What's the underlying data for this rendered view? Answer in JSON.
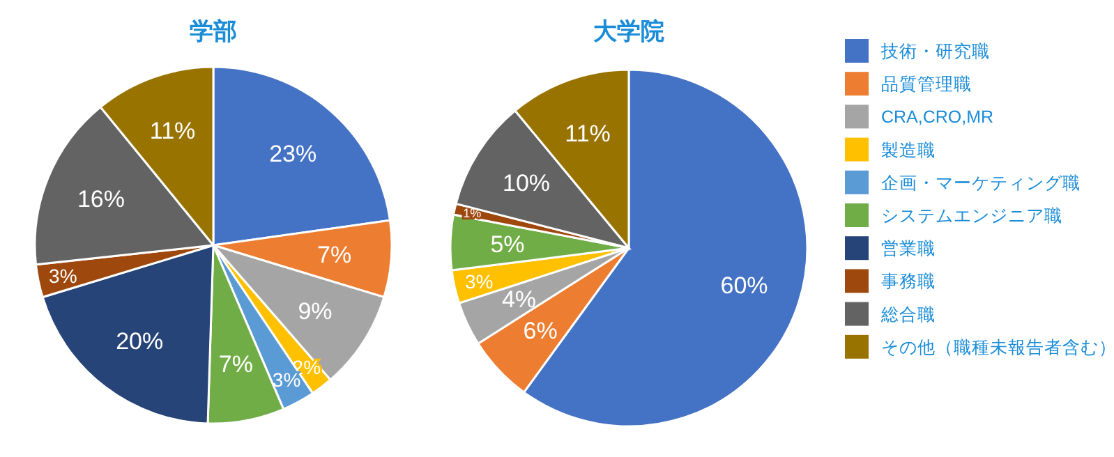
{
  "chart_data": [
    {
      "type": "pie",
      "title": "学部",
      "categories": [
        null,
        null,
        null,
        null,
        null,
        null,
        null,
        null,
        null,
        null
      ],
      "values": [
        23,
        7,
        9,
        2,
        3,
        7,
        20,
        3,
        16,
        11
      ],
      "value_labels": [
        "23%",
        "7%",
        "9%",
        "2%",
        "3%",
        "7%",
        "20%",
        "3%",
        "16%",
        "11%"
      ],
      "colors": [
        "#4472c4",
        "#ed7d31",
        "#a5a5a5",
        "#ffc000",
        "#5b9bd5",
        "#70ad47",
        "#264478",
        "#9e480e",
        "#636363",
        "#997300"
      ],
      "legend": false
    },
    {
      "type": "pie",
      "title": "大学院",
      "categories": [
        "技術・研究職",
        "品質管理職",
        "CRA,CRO,MR",
        "製造職",
        "企画・マーケティング職",
        "システムエンジニア職",
        "営業職",
        "事務職",
        "総合職",
        "その他（職種未報告者含む）"
      ],
      "values": [
        60,
        6,
        4,
        3,
        0,
        5,
        0,
        1,
        10,
        11
      ],
      "value_labels": [
        "60%",
        "6%",
        "4%",
        "3%",
        null,
        "5%",
        null,
        "1%",
        "10%",
        "11%"
      ],
      "colors": [
        "#4472c4",
        "#ed7d31",
        "#a5a5a5",
        "#ffc000",
        "#5b9bd5",
        "#70ad47",
        "#264478",
        "#9e480e",
        "#636363",
        "#997300"
      ],
      "legend": "right"
    }
  ]
}
